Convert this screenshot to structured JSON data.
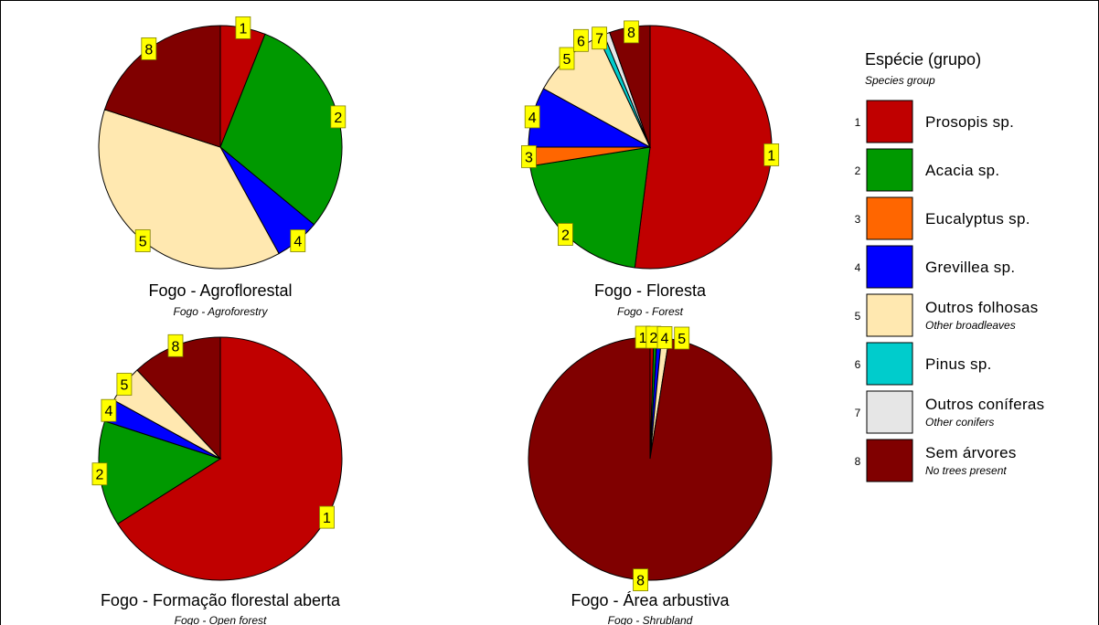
{
  "legend": {
    "title": "Espécie (grupo)",
    "subtitle": "Species group",
    "items": [
      {
        "num": "1",
        "name": "Prosopis sp.",
        "sub": "",
        "color": "#c00000"
      },
      {
        "num": "2",
        "name": "Acacia sp.",
        "sub": "",
        "color": "#009900"
      },
      {
        "num": "3",
        "name": "Eucalyptus sp.",
        "sub": "",
        "color": "#ff6600"
      },
      {
        "num": "4",
        "name": "Grevillea sp.",
        "sub": "",
        "color": "#0000ff"
      },
      {
        "num": "5",
        "name": "Outros folhosas",
        "sub": "Other broadleaves",
        "color": "#ffe8b0"
      },
      {
        "num": "6",
        "name": "Pinus sp.",
        "sub": "",
        "color": "#00cccc"
      },
      {
        "num": "7",
        "name": "Outros coníferas",
        "sub": "Other conifers",
        "color": "#e6e6e6"
      },
      {
        "num": "8",
        "name": "Sem árvores",
        "sub": "No trees present",
        "color": "#800000"
      }
    ]
  },
  "label_color": "#ffff00",
  "chart_data": [
    {
      "type": "pie",
      "title": "Fogo - Agroflorestal",
      "subtitle": "Fogo - Agroforestry",
      "slices": [
        {
          "label": "1",
          "value": 6
        },
        {
          "label": "2",
          "value": 30
        },
        {
          "label": "4",
          "value": 6
        },
        {
          "label": "5",
          "value": 38
        },
        {
          "label": "8",
          "value": 20
        }
      ]
    },
    {
      "type": "pie",
      "title": "Fogo - Floresta",
      "subtitle": "Fogo - Forest",
      "slices": [
        {
          "label": "1",
          "value": 52
        },
        {
          "label": "2",
          "value": 20.5
        },
        {
          "label": "3",
          "value": 2.5
        },
        {
          "label": "4",
          "value": 8
        },
        {
          "label": "5",
          "value": 10
        },
        {
          "label": "6",
          "value": 0.8
        },
        {
          "label": "7",
          "value": 0.8
        },
        {
          "label": "8",
          "value": 5.4
        }
      ]
    },
    {
      "type": "pie",
      "title": "Fogo - Formação florestal aberta",
      "subtitle": "Fogo - Open forest",
      "slices": [
        {
          "label": "1",
          "value": 66
        },
        {
          "label": "2",
          "value": 14
        },
        {
          "label": "4",
          "value": 3
        },
        {
          "label": "5",
          "value": 5
        },
        {
          "label": "8",
          "value": 12
        }
      ]
    },
    {
      "type": "pie",
      "title": "Fogo - Área arbustiva",
      "subtitle": "Fogo - Shrubland",
      "slices": [
        {
          "label": "1",
          "value": 0.5
        },
        {
          "label": "2",
          "value": 0.4
        },
        {
          "label": "4",
          "value": 0.6
        },
        {
          "label": "5",
          "value": 1.0
        },
        {
          "label": "8",
          "value": 97.5
        }
      ]
    }
  ]
}
